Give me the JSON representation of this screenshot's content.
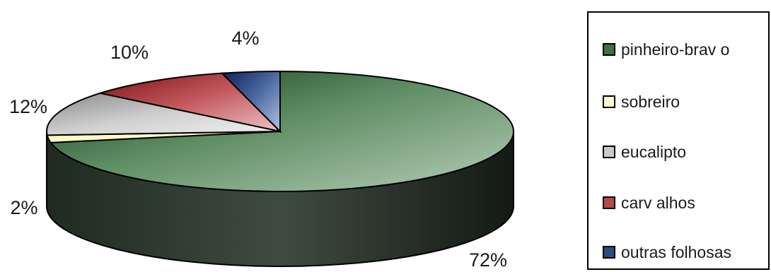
{
  "chart_data": {
    "type": "pie",
    "categories": [
      "pinheiro-brav o",
      "sobreiro",
      "eucalipto",
      "carv alhos",
      "outras folhosas"
    ],
    "values": [
      72,
      2,
      12,
      10,
      4
    ],
    "labels": [
      "72%",
      "2%",
      "12%",
      "10%",
      "4%"
    ],
    "legend_position": "right",
    "colors": {
      "pinheiro-brav o": "#3f6f44",
      "sobreiro": "#fffbd0",
      "eucalipto": "#c9c9c9",
      "carv alhos": "#b54a4a",
      "outras folhosas": "#2c4b7e"
    },
    "style": "3d-pie"
  }
}
